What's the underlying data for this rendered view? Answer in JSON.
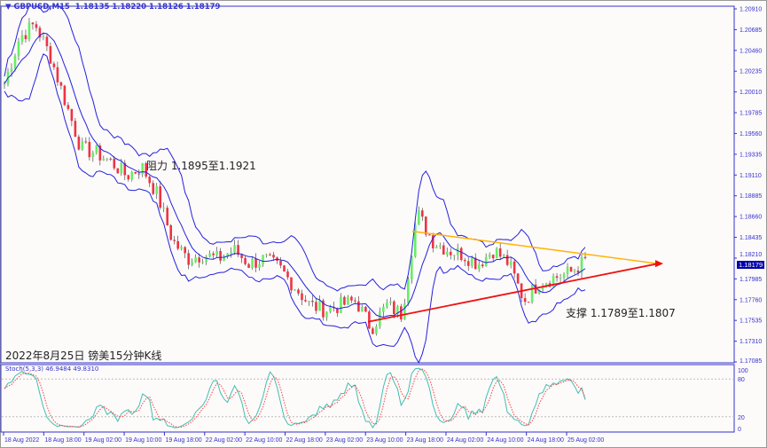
{
  "header": {
    "symbol": "GBPUSD,M15",
    "ohlc": "1.18135 1.18220 1.18126 1.18179"
  },
  "title": "2022年8月25日 镑美15分钟K线",
  "annotations": {
    "resistance": "阻力 1.1895至1.1921",
    "support": "支撑 1.1789至1.1807"
  },
  "current_price": "1.18179",
  "colors": {
    "axis": "#3333cc",
    "band": "#2222dd",
    "bull": "#66ee66",
    "bear": "#ee3344",
    "resistance_line": "#ffb300",
    "support_line": "#ee1111",
    "stoch_main": "#40c0b0",
    "stoch_signal": "#ff4040"
  },
  "chart_data": {
    "type": "candlestick",
    "indicators": [
      "Bollinger Bands",
      "Stochastic"
    ],
    "price_ticks": [
      "1.20910",
      "1.20685",
      "1.20460",
      "1.20235",
      "1.20010",
      "1.19785",
      "1.19560",
      "1.19335",
      "1.19110",
      "1.18885",
      "1.18660",
      "1.18435",
      "1.18210",
      "1.17985",
      "1.17760",
      "1.17535",
      "1.17310",
      "1.17085"
    ],
    "ylim": [
      1.17085,
      1.2091
    ],
    "time_ticks": [
      "18 Aug 2022",
      "18 Aug 18:00",
      "19 Aug 02:00",
      "19 Aug 10:00",
      "19 Aug 18:00",
      "22 Aug 02:00",
      "22 Aug 10:00",
      "22 Aug 18:00",
      "23 Aug 02:00",
      "23 Aug 10:00",
      "23 Aug 18:00",
      "24 Aug 02:00",
      "24 Aug 10:00",
      "24 Aug 18:00",
      "25 Aug 02:00"
    ],
    "close_approx": [
      1.201,
      1.206,
      1.2075,
      1.204,
      1.199,
      1.194,
      1.1935,
      1.1925,
      1.191,
      1.192,
      1.189,
      1.184,
      1.182,
      1.1825,
      1.182,
      1.183,
      1.1815,
      1.182,
      1.181,
      1.179,
      1.177,
      1.1765,
      1.177,
      1.1775,
      1.1745,
      1.177,
      1.176,
      1.187,
      1.184,
      1.183,
      1.1825,
      1.1815,
      1.183,
      1.1815,
      1.1775,
      1.1795,
      1.18,
      1.1805,
      1.1818
    ],
    "stoch": {
      "label": "Stoch(5,3,3) 46.9484 49.8310",
      "main": 46.9484,
      "signal": 49.831,
      "levels": [
        "100",
        "80",
        "20",
        "0"
      ]
    },
    "trendlines": [
      {
        "name": "resistance",
        "from": 1.185,
        "to": 1.1815
      },
      {
        "name": "support",
        "from": 1.1752,
        "to": 1.1815
      }
    ]
  }
}
